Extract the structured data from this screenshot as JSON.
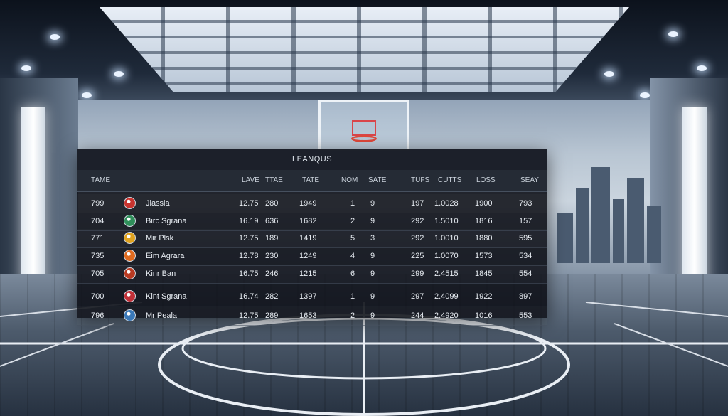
{
  "board": {
    "title": "LEANQUS",
    "headers": [
      "TAME",
      "LAVE",
      "TTAE",
      "TATE",
      "NOM",
      "SATE",
      "TUFS",
      "CUTTS",
      "LOSS",
      "SEAY"
    ],
    "rows": [
      {
        "rank": "799",
        "logo": "striped-shield-icon",
        "team": "Jlassia",
        "lave": "12.75",
        "ttae": "280",
        "tate": "1949",
        "nom": "1",
        "sate": "9",
        "tufs": "197",
        "cutts": "1.0028",
        "loss": "1900",
        "seay": "793"
      },
      {
        "rank": "704",
        "logo": "globe-crest-icon",
        "team": "Birc Sgrana",
        "lave": "16.19",
        "ttae": "636",
        "tate": "1682",
        "nom": "2",
        "sate": "9",
        "tufs": "292",
        "cutts": "1.5010",
        "loss": "1816",
        "seay": "157"
      },
      {
        "rank": "771",
        "logo": "winged-crest-icon",
        "team": "Mir Plsk",
        "lave": "12.75",
        "ttae": "189",
        "tate": "1419",
        "nom": "5",
        "sate": "3",
        "tufs": "292",
        "cutts": "1.0010",
        "loss": "1880",
        "seay": "595"
      },
      {
        "rank": "735",
        "logo": "shield-crest-icon",
        "team": "Eim Agrara",
        "lave": "12.78",
        "ttae": "230",
        "tate": "1249",
        "nom": "4",
        "sate": "9",
        "tufs": "225",
        "cutts": "1.0070",
        "loss": "1573",
        "seay": "534"
      },
      {
        "rank": "705",
        "logo": "flame-crest-icon",
        "team": "Kinr Ban",
        "lave": "16.75",
        "ttae": "246",
        "tate": "1215",
        "nom": "6",
        "sate": "9",
        "tufs": "299",
        "cutts": "2.4515",
        "loss": "1845",
        "seay": "554"
      },
      {
        "rank": "700",
        "logo": "round-crest-icon",
        "team": "Kint Sgrana",
        "lave": "16.74",
        "ttae": "282",
        "tate": "1397",
        "nom": "1",
        "sate": "9",
        "tufs": "297",
        "cutts": "2.4099",
        "loss": "1922",
        "seay": "897"
      },
      {
        "rank": "796",
        "logo": "mountain-crest-icon",
        "team": "Mr Peala",
        "lave": "12.75",
        "ttae": "289",
        "tate": "1653",
        "nom": "2",
        "sate": "9",
        "tufs": "244",
        "cutts": "2.4920",
        "loss": "1016",
        "seay": "553"
      }
    ]
  },
  "colors": {
    "board_bg": "#0e1118",
    "text": "#e6ebf1",
    "logos": [
      "#c8342f",
      "#2f8f5a",
      "#e0a21e",
      "#e06a1e",
      "#b83a22",
      "#c23038",
      "#3a78b8"
    ]
  }
}
